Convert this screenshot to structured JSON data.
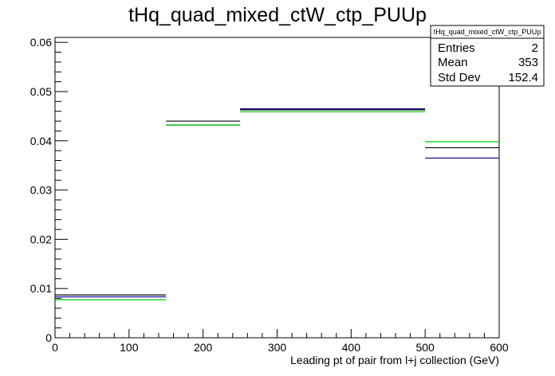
{
  "chart_data": {
    "type": "histogram",
    "title": "tHq_quad_mixed_ctW_ctp_PUUp",
    "xlabel": "Leading pt of pair from l+j collection (GeV)",
    "ylabel": "",
    "xlim": [
      0,
      600
    ],
    "ylim": [
      0,
      0.061
    ],
    "x_ticks": [
      0,
      100,
      200,
      300,
      400,
      500,
      600
    ],
    "y_ticks": [
      0,
      0.01,
      0.02,
      0.03,
      0.04,
      0.05,
      0.06
    ],
    "x_tick_labels": [
      "0",
      "100",
      "200",
      "300",
      "400",
      "500",
      "600"
    ],
    "y_tick_labels": [
      "0",
      "0.01",
      "0.02",
      "0.03",
      "0.04",
      "0.05",
      "0.06"
    ],
    "bin_edges": [
      0,
      150,
      250,
      500,
      600
    ],
    "series": [
      {
        "color": "#000000",
        "values": [
          0.0087,
          0.044,
          0.0463,
          0.0386
        ]
      },
      {
        "color": "#00008b",
        "values": [
          0.0083,
          0.0432,
          0.0465,
          0.0365
        ]
      },
      {
        "color": "#00cc00",
        "values": [
          0.0077,
          0.0432,
          0.0459,
          0.0398
        ]
      }
    ],
    "grid": false,
    "legend": "none",
    "stats_box": {
      "title": "tHq_quad_mixed_ctW_ctp_PUUp",
      "rows": [
        {
          "label": "Entries",
          "value": "2"
        },
        {
          "label": "Mean",
          "value": "353"
        },
        {
          "label": "Std Dev",
          "value": "152.4"
        }
      ],
      "placement": "top-right"
    }
  }
}
